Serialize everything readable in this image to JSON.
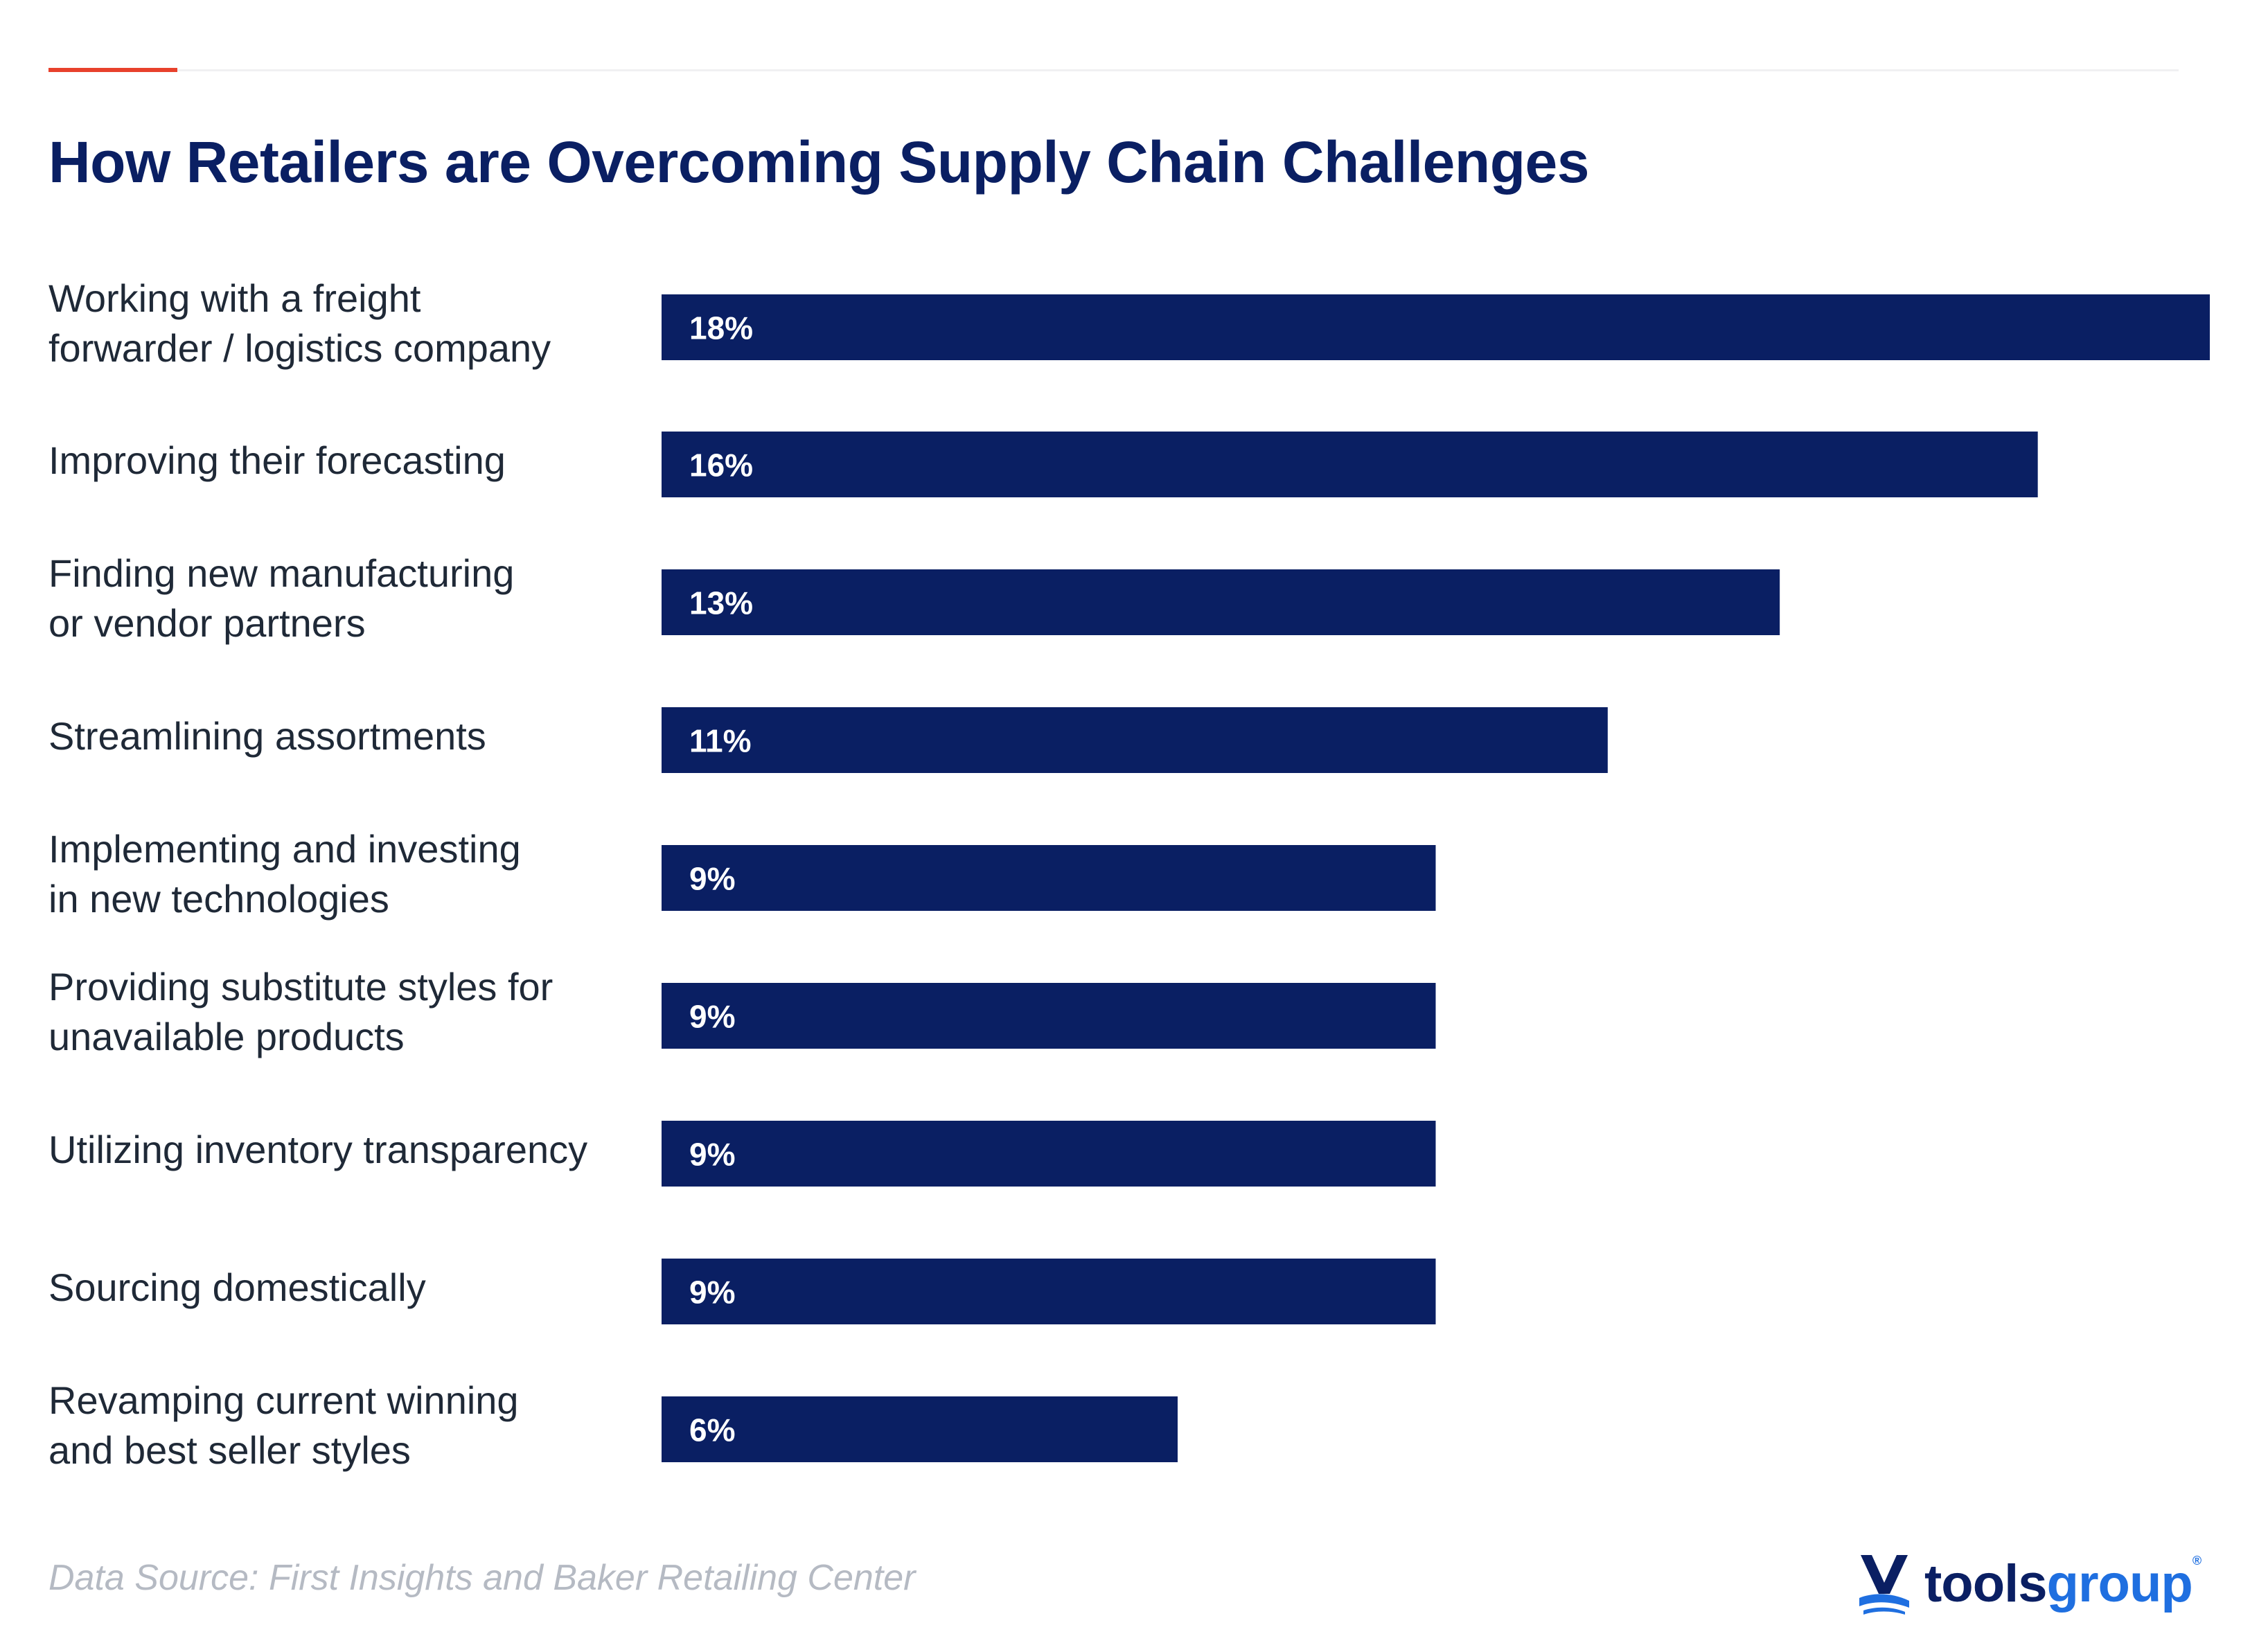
{
  "header": {
    "title": "How Retailers are Overcoming Supply Chain Challenges"
  },
  "footer": {
    "source": "Data Source: First Insights and Baker Retailing Center"
  },
  "brand": {
    "logo_tools": "tools",
    "logo_group": "group",
    "registered": "®"
  },
  "colors": {
    "bar": "#0a1f63",
    "title": "#0a1f63",
    "accent": "#e8412c",
    "brand_blue": "#1f6fe0"
  },
  "chart_data": {
    "type": "bar",
    "orientation": "horizontal",
    "title": "How Retailers are Overcoming Supply Chain Challenges",
    "xlabel": "",
    "ylabel": "",
    "xlim": [
      0,
      18
    ],
    "grid": false,
    "legend": "none",
    "categories": [
      "Working with a freight\nforwarder / logistics company",
      "Improving their forecasting",
      "Finding new manufacturing\nor vendor partners",
      "Streamlining assortments",
      "Implementing and investing\nin new technologies",
      "Providing substitute styles for\nunavailable products",
      "Utilizing inventory transparency",
      "Sourcing domestically",
      "Revamping current winning\nand best seller styles"
    ],
    "values": [
      18,
      16,
      13,
      11,
      9,
      9,
      9,
      9,
      6
    ],
    "data_labels": [
      "18%",
      "16%",
      "13%",
      "11%",
      "9%",
      "9%",
      "9%",
      "9%",
      "6%"
    ]
  }
}
